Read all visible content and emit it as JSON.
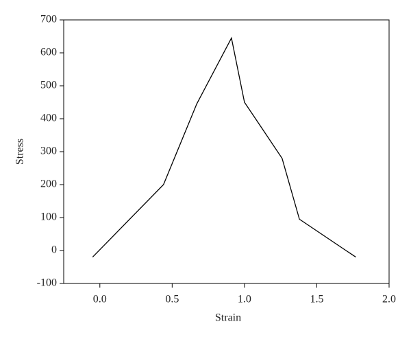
{
  "chart_data": {
    "type": "line",
    "x_label": "Strain",
    "y_label": "Stress",
    "series": [
      {
        "color": "#000000",
        "x": [
          -0.05,
          0.44,
          0.67,
          0.91,
          1.0,
          1.26,
          1.38,
          1.77
        ],
        "values": [
          -20,
          200,
          445,
          645,
          450,
          280,
          95,
          -20
        ]
      }
    ],
    "xlim": [
      -0.25,
      2.0
    ],
    "xticks": [
      {
        "value": 0,
        "label": "0.0"
      },
      {
        "value": 0.5,
        "label": "0.5"
      },
      {
        "value": 1,
        "label": "1.0"
      },
      {
        "value": 1.5,
        "label": "1.5"
      },
      {
        "value": 2,
        "label": "2.0"
      }
    ],
    "ylim": [
      -100,
      700
    ],
    "yticks": [
      -100,
      0,
      100,
      200,
      300,
      400,
      500,
      600,
      700
    ],
    "grid": false
  }
}
